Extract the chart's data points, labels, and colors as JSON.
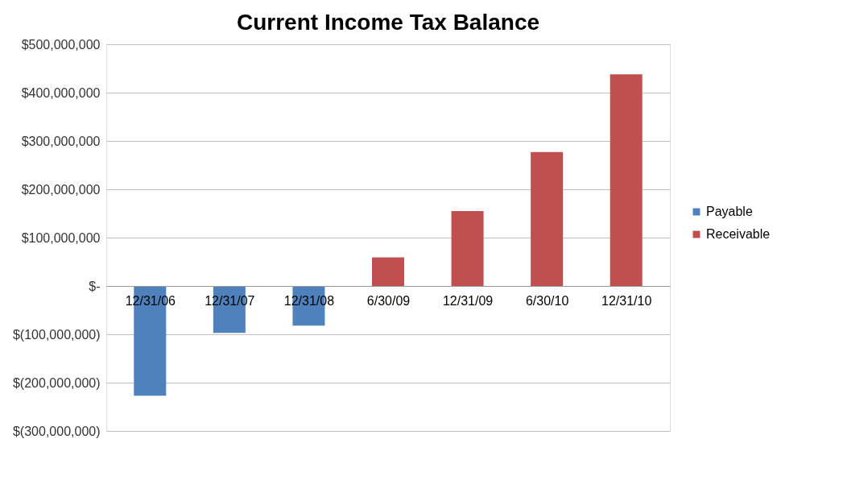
{
  "chart_data": {
    "type": "bar",
    "title": "Current Income Tax Balance",
    "categories": [
      "12/31/06",
      "12/31/07",
      "12/31/08",
      "6/30/09",
      "12/31/09",
      "6/30/10",
      "12/31/10"
    ],
    "series": [
      {
        "name": "Payable",
        "color": "#4f81bd",
        "values": [
          -227000000,
          -97000000,
          -82000000,
          null,
          null,
          null,
          null
        ]
      },
      {
        "name": "Receivable",
        "color": "#c0504d",
        "values": [
          null,
          null,
          null,
          59000000,
          155000000,
          277000000,
          438000000
        ]
      }
    ],
    "ylim": [
      -300000000,
      500000000
    ],
    "yticks": [
      {
        "value": -300000000,
        "label": "$(300,000,000)"
      },
      {
        "value": -200000000,
        "label": "$(200,000,000)"
      },
      {
        "value": -100000000,
        "label": "$(100,000,000)"
      },
      {
        "value": 0,
        "label": "$-"
      },
      {
        "value": 100000000,
        "label": "$100,000,000"
      },
      {
        "value": 200000000,
        "label": "$200,000,000"
      },
      {
        "value": 300000000,
        "label": "$300,000,000"
      },
      {
        "value": 400000000,
        "label": "$400,000,000"
      },
      {
        "value": 500000000,
        "label": "$500,000,000"
      }
    ],
    "grid": "y",
    "legend": "right"
  }
}
